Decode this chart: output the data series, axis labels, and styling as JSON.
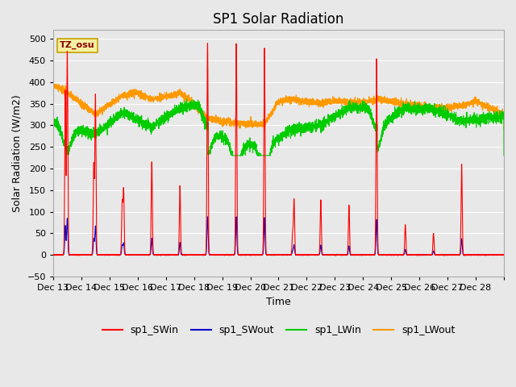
{
  "title": "SP1 Solar Radiation",
  "ylabel": "Solar Radiation (W/m2)",
  "xlabel": "Time",
  "ylim": [
    -50,
    520
  ],
  "yticks": [
    -50,
    0,
    50,
    100,
    150,
    200,
    250,
    300,
    350,
    400,
    450,
    500
  ],
  "annotation_text": "TZ_osu",
  "annotation_box_color": "#f5f0a0",
  "annotation_box_edge": "#c8a000",
  "annotation_text_color": "#8b0000",
  "colors": {
    "sp1_SWin": "#ff0000",
    "sp1_SWout": "#0000cc",
    "sp1_LWin": "#00cc00",
    "sp1_LWout": "#ff9900"
  },
  "line_width": 0.8,
  "background_color": "#e8e8e8",
  "grid_color": "#ffffff",
  "n_days": 16,
  "x_tick_labels": [
    "Dec 13",
    "Dec 14",
    "Dec 15",
    "Dec 16",
    "Dec 17",
    "Dec 18",
    "Dec 19",
    "Dec 20",
    "Dec 21",
    "Dec 22",
    "Dec 23",
    "Dec 24",
    "Dec 25",
    "Dec 26",
    "Dec 27",
    "Dec 28"
  ],
  "title_fontsize": 12,
  "label_fontsize": 9,
  "tick_fontsize": 8,
  "legend_fontsize": 9,
  "figsize": [
    6.4,
    4.8
  ],
  "dpi": 100
}
